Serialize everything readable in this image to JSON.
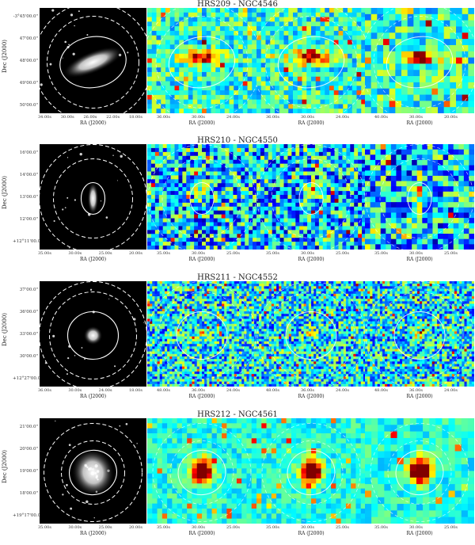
{
  "galaxies": [
    {
      "title": "HRS209 - NGC4546",
      "ylabel": "Dec (J2000)",
      "yticks": [
        "-3°45'00.0\"",
        "47'00.0\"",
        "48'00.0\"",
        "49'00.0\"",
        "50'00.0\""
      ],
      "optical_xticks": [
        "34.00s",
        "30.00s",
        "26.00s",
        "22.00s",
        "18.00s"
      ],
      "map_xticks": [
        [
          "36.00s",
          "30.00s",
          "24.00s"
        ],
        [
          "36.00s",
          "30.00s",
          "24.00s"
        ],
        [
          "40.00s",
          "30.00s",
          "20.00s"
        ]
      ],
      "xlabel": "RA (J2000)"
    },
    {
      "title": "HRS210 - NGC4550",
      "ylabel": "Dec (J2000)",
      "yticks": [
        "16'00.0\"",
        "14'00.0\"",
        "13'00.0\"",
        "12'00.0\"",
        "+12°11'00.0\""
      ],
      "optical_xticks": [
        "35.00s",
        "30.00s",
        "25.00s",
        "20.00s"
      ],
      "map_xticks": [
        [
          "35.00s",
          "30.00s",
          "25.00s"
        ],
        [
          "35.00s",
          "30.00s",
          "25.00s"
        ],
        [
          "35.00s",
          "30.00s",
          "25.00s"
        ]
      ],
      "xlabel": "RA (J2000)"
    },
    {
      "title": "HRS211 - NGC4552",
      "ylabel": "Dec (J2000)",
      "yticks": [
        "37'00.0\"",
        "36'00.0\"",
        "33'00.0\"",
        "30'00.0\"",
        "+12°27'00.0\""
      ],
      "optical_xticks": [
        "36.00s",
        "30.00s",
        "24.00s",
        "18.00s"
      ],
      "map_xticks": [
        [
          "48.00s",
          "36.00s",
          "24.00s"
        ],
        [
          "48.00s",
          "36.00s",
          "24.00s"
        ],
        [
          "48.00s",
          "36.00s",
          "24.00s"
        ]
      ],
      "xlabel": "RA (J2000)"
    },
    {
      "title": "HRS212 - NGC4561",
      "ylabel": "Dec (J2000)",
      "yticks": [
        "21'00.0\"",
        "20'00.0\"",
        "19'00.0\"",
        "18'00.0\"",
        "+19°17'00.0\""
      ],
      "optical_xticks": [
        "35.00s",
        "30.00s",
        "25.00s",
        "20.00s"
      ],
      "map_xticks": [
        [
          "35.00s",
          "30.00s",
          "25.00s"
        ],
        [
          "35.00s",
          "30.00s",
          "25.00s"
        ],
        [
          "35.00s",
          "30.00s",
          "25.00s"
        ]
      ],
      "xlabel": "RA (J2000)"
    }
  ],
  "colors": {
    "background_map": "#2aa8e6",
    "hot": "#b00000",
    "optical_bg": "#000000"
  }
}
